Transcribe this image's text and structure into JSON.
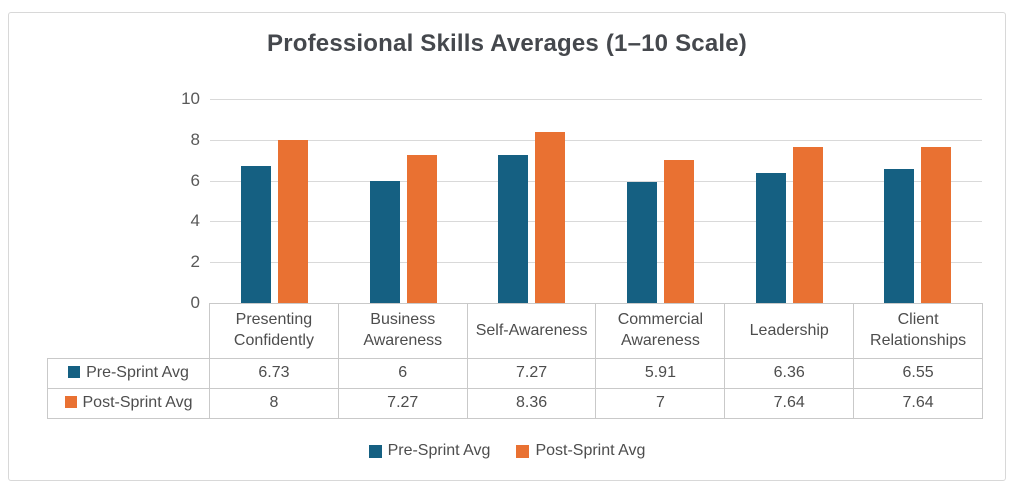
{
  "chart_data": {
    "type": "bar",
    "title": "Professional Skills Averages (1–10 Scale)",
    "categories": [
      "Presenting Confidently",
      "Business Awareness",
      "Self-Awareness",
      "Commercial Awareness",
      "Leadership",
      "Client Relationships"
    ],
    "series": [
      {
        "name": "Pre-Sprint Avg",
        "color": "#156082",
        "values": [
          6.73,
          6,
          7.27,
          5.91,
          6.36,
          6.55
        ]
      },
      {
        "name": "Post-Sprint Avg",
        "color": "#E97132",
        "values": [
          8,
          7.27,
          8.36,
          7,
          7.64,
          7.64
        ]
      }
    ],
    "ylim": [
      0,
      10
    ],
    "yticks": [
      0,
      2,
      4,
      6,
      8,
      10
    ],
    "grid": true,
    "legend_position": "bottom",
    "data_table_shown": true,
    "colors": {
      "grid": "#d9d9d9",
      "table_border": "#c9c9c9",
      "text": "#4d4d4d"
    }
  }
}
